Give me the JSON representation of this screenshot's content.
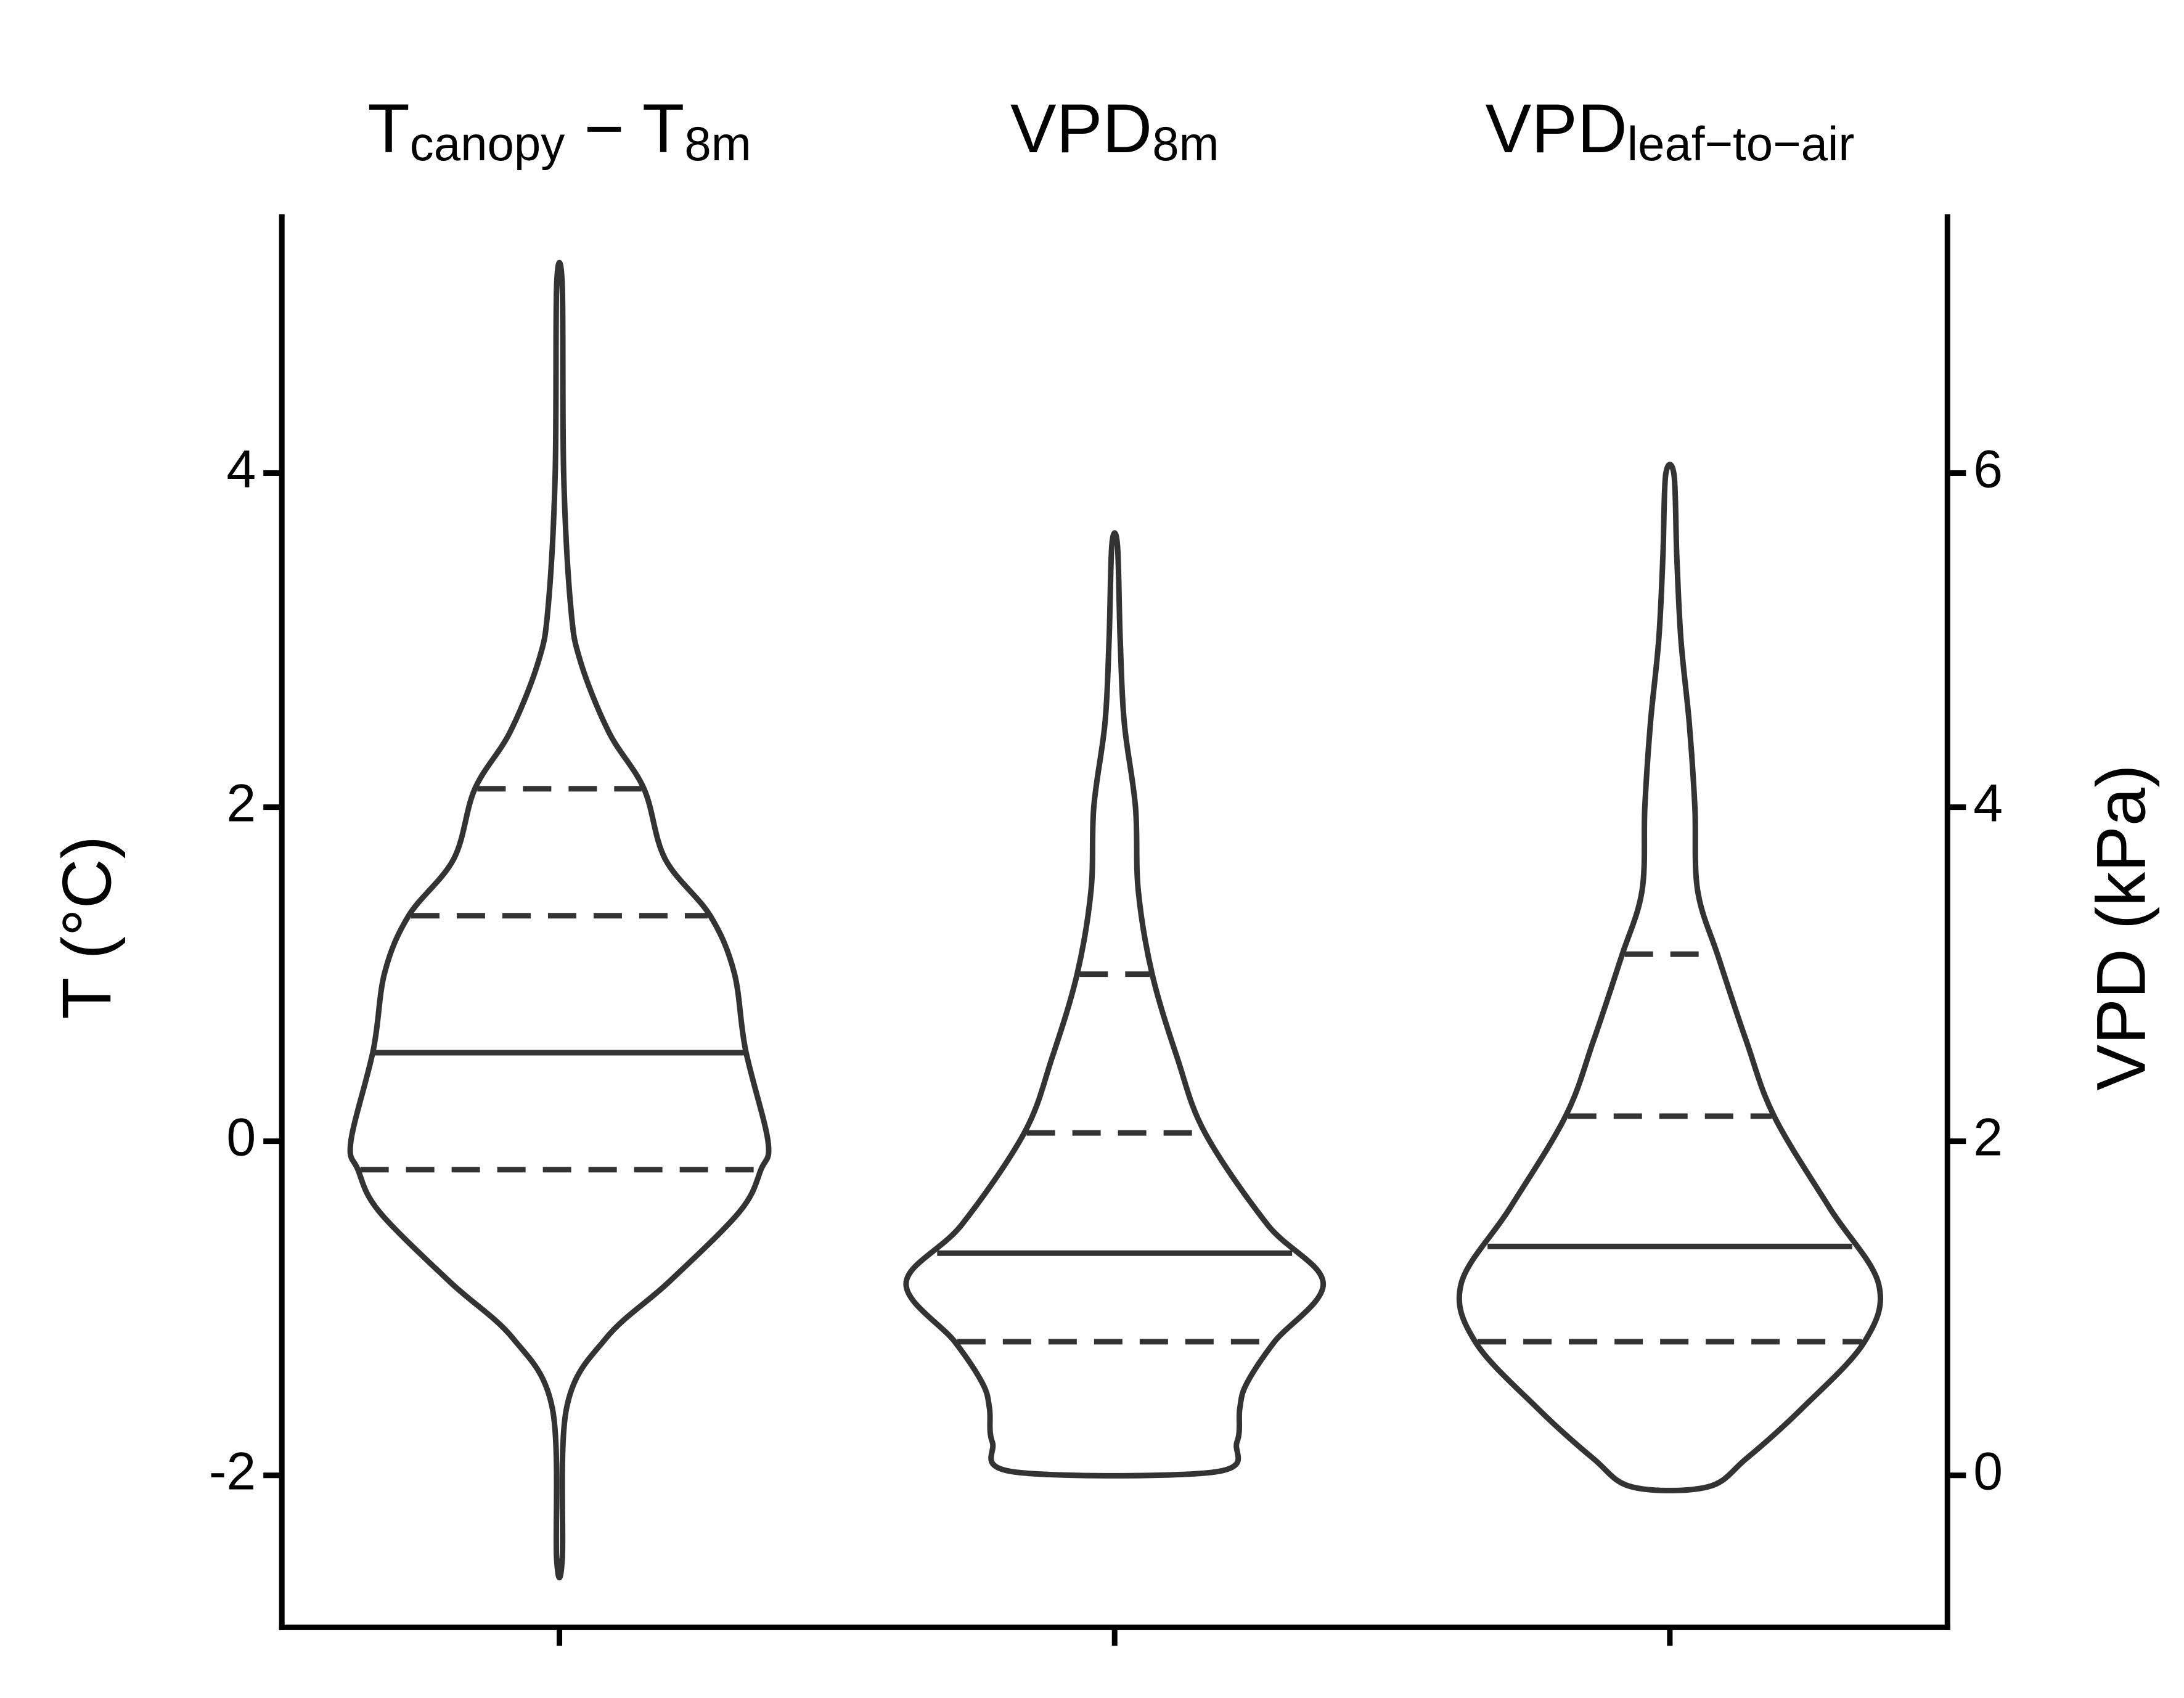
{
  "chart_data": {
    "type": "violin",
    "ylabel": "T (°C)",
    "y2label": "VPD (kPa)",
    "ylim": [
      -2.91,
      5.55
    ],
    "yticks": [
      -2,
      0,
      2,
      4
    ],
    "y2lim": [
      -0.91,
      7.55
    ],
    "y2ticks": [
      0,
      2,
      4,
      6
    ],
    "color": "#333333",
    "series": [
      {
        "label_parts": [
          {
            "text": "T"
          },
          {
            "text": "canopy",
            "sub": true
          },
          {
            "text": " −  T"
          },
          {
            "text": "8m",
            "sub": true
          }
        ],
        "axis": "y",
        "y": [
          5.12,
          4.0,
          3.2,
          2.87,
          2.45,
          2.11,
          1.69,
          1.35,
          1.01,
          0.55,
          0.0,
          -0.17,
          -0.42,
          -0.84,
          -1.18,
          -1.6,
          -2.5
        ],
        "density": [
          2,
          3,
          8,
          15,
          35,
          60,
          75,
          107,
          124,
          132,
          148,
          143,
          128,
          78,
          33,
          5,
          2
        ],
        "median": 0.53,
        "quartiles": [
          2.11,
          1.35,
          -0.17
        ]
      },
      {
        "label_parts": [
          {
            "text": "VPD"
          },
          {
            "text": "8m",
            "sub": true
          }
        ],
        "axis": "y2",
        "y": [
          5.57,
          5.0,
          4.5,
          4.0,
          3.5,
          3.0,
          2.5,
          2.05,
          1.5,
          1.15,
          0.8,
          0.55,
          0.4,
          0.2,
          0.02
        ],
        "density": [
          2,
          4,
          7,
          15,
          17,
          27,
          45,
          65,
          110,
          150,
          115,
          95,
          90,
          88,
          72
        ],
        "median": 1.33,
        "quartiles": [
          3.0,
          2.05,
          0.8
        ]
      },
      {
        "label_parts": [
          {
            "text": "VPD"
          },
          {
            "text": "leaf−to−air",
            "sub": true
          }
        ],
        "axis": "y2",
        "y": [
          5.99,
          5.5,
          5.0,
          4.5,
          4.0,
          3.5,
          3.1,
          2.6,
          2.15,
          1.6,
          1.15,
          0.8,
          0.4,
          0.1,
          -0.07
        ],
        "density": [
          3,
          5,
          8,
          14,
          18,
          20,
          35,
          55,
          75,
          115,
          150,
          140,
          95,
          55,
          27
        ],
        "median": 1.37,
        "quartiles": [
          3.12,
          2.15,
          0.8
        ]
      }
    ]
  }
}
